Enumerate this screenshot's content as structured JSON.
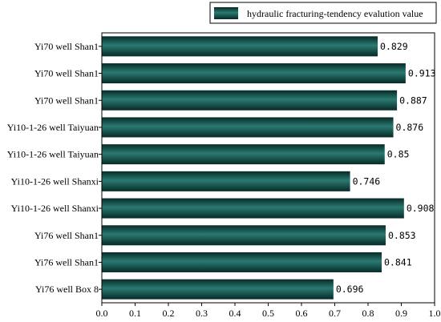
{
  "chart_data": {
    "type": "bar",
    "orientation": "horizontal",
    "categories": [
      "Yi70 well Shan1",
      "Yi70 well Shan1",
      "Yi70 well Shan1",
      "Yi10-1-26 well Taiyuan",
      "Yi10-1-26 well Taiyuan",
      "Yi10-1-26 well Shanxi",
      "Yi10-1-26 well Shanxi",
      "Yi76 well Shan1",
      "Yi76 well Shan1",
      "Yi76 well Box 8"
    ],
    "series": [
      {
        "name": "hydraulic fracturing-tendency evalution value",
        "values": [
          0.829,
          0.913,
          0.887,
          0.876,
          0.85,
          0.746,
          0.908,
          0.853,
          0.841,
          0.696
        ],
        "value_labels": [
          "0.829",
          "0.913",
          "0.887",
          "0.876",
          "0.85",
          "0.746",
          "0.908",
          "0.853",
          "0.841",
          "0.696"
        ]
      }
    ],
    "xlim": [
      0.0,
      1.0
    ],
    "xticks": [
      "0.0",
      "0.1",
      "0.2",
      "0.3",
      "0.4",
      "0.5",
      "0.6",
      "0.7",
      "0.8",
      "0.9",
      "1.0"
    ],
    "title": "",
    "xlabel": "",
    "ylabel": "",
    "grid": false,
    "legend_position": "top-right",
    "bar_color": "#0f4b46",
    "bar_highlight_color": "#2a7a72"
  }
}
